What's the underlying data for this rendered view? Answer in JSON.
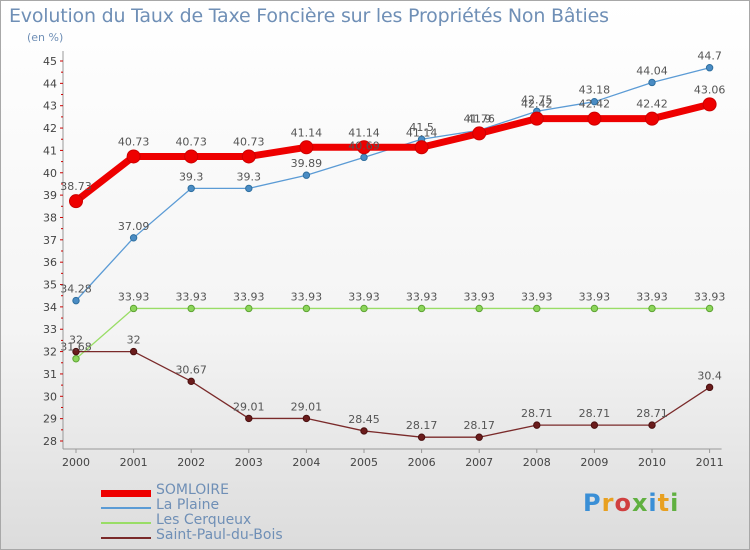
{
  "chart_data": {
    "type": "line",
    "title": "Evolution du Taux de Taxe Foncière sur les Propriétés Non Bâties",
    "subtitle": "(en %)",
    "categories": [
      "2000",
      "2001",
      "2002",
      "2003",
      "2004",
      "2005",
      "2006",
      "2007",
      "2008",
      "2009",
      "2010",
      "2011"
    ],
    "ylim": [
      28,
      45
    ],
    "yticks": [
      28,
      29,
      30,
      31,
      32,
      33,
      34,
      35,
      36,
      37,
      38,
      39,
      40,
      41,
      42,
      43,
      44,
      45
    ],
    "grid": false,
    "legend_position": "bottom-left",
    "series": [
      {
        "name": "SOMLOIRE",
        "color": "#ee0000",
        "values": [
          38.73,
          40.73,
          40.73,
          40.73,
          41.14,
          41.14,
          41.14,
          41.76,
          42.42,
          42.42,
          42.42,
          43.06
        ]
      },
      {
        "name": "La Plaine",
        "color": "#5b9bd5",
        "values": [
          34.28,
          37.09,
          39.3,
          39.3,
          39.89,
          40.69,
          41.5,
          41.9,
          42.75,
          43.18,
          44.04,
          44.7
        ]
      },
      {
        "name": "Les Cerqueux",
        "color": "#99dd66",
        "values": [
          31.68,
          33.93,
          33.93,
          33.93,
          33.93,
          33.93,
          33.93,
          33.93,
          33.93,
          33.93,
          33.93,
          33.93
        ]
      },
      {
        "name": "Saint-Paul-du-Bois",
        "color": "#7a2a2a",
        "values": [
          32,
          32,
          30.67,
          29.01,
          29.01,
          28.45,
          28.17,
          28.17,
          28.71,
          28.71,
          28.71,
          30.4
        ]
      }
    ]
  },
  "logo": {
    "text": "Proxiti"
  }
}
